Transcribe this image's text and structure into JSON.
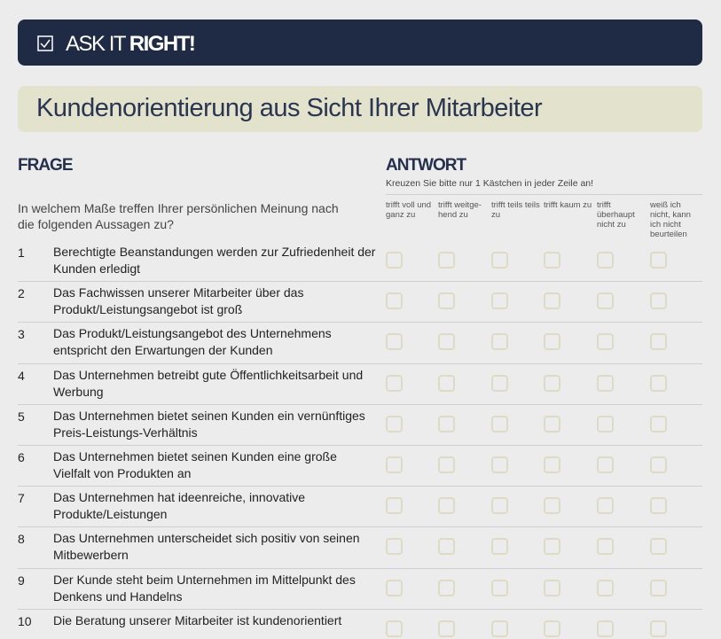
{
  "brand": {
    "prefix": "ASK IT",
    "emphasis": "RIGHT!"
  },
  "title": "Kundenorientierung aus Sicht Ihrer Mitarbeiter",
  "question_heading": "FRAGE",
  "answer_heading": "ANTWORT",
  "answer_instruction": "Kreuzen Sie bitte nur 1 Kästchen in jeder Zeile an!",
  "question_intro": "In welchem Maße treffen Ihrer persönlichen Meinung nach die folgenden Aussagen zu?",
  "options": [
    "trifft voll und ganz zu",
    "trifft weitge-hend zu",
    "trifft teils teils zu",
    "trifft kaum zu",
    "trifft überhaupt nicht zu",
    "weiß ich nicht, kann ich nicht beurteilen"
  ],
  "rows": [
    {
      "number": "1",
      "text": "Berechtigte Beanstandungen werden zur Zufriedenheit der Kunden erledigt"
    },
    {
      "number": "2",
      "text": "Das Fachwissen unserer Mitarbeiter über das Produkt/Leistungsangebot ist groß"
    },
    {
      "number": "3",
      "text": "Das Produkt/Leistungsangebot des Unternehmens entspricht den Erwartungen der Kunden"
    },
    {
      "number": "4",
      "text": "Das Unternehmen betreibt gute Öffentlichkeitsarbeit und Werbung"
    },
    {
      "number": "5",
      "text": "Das Unternehmen bietet seinen Kunden ein vernünftiges Preis-Leistungs-Verhältnis"
    },
    {
      "number": "6",
      "text": "Das Unternehmen bietet seinen Kunden eine große Vielfalt von Produkten an"
    },
    {
      "number": "7",
      "text": "Das Unternehmen hat ideenreiche, innovative Produkte/Leistungen"
    },
    {
      "number": "8",
      "text": "Das Unternehmen unterscheidet sich positiv von seinen Mitbewerbern"
    },
    {
      "number": "9",
      "text": "Der Kunde steht beim Unternehmen im Mittelpunkt des Denkens und Handelns"
    },
    {
      "number": "10",
      "text": "Die Beratung unserer Mitarbeiter ist kundenorientiert"
    }
  ]
}
